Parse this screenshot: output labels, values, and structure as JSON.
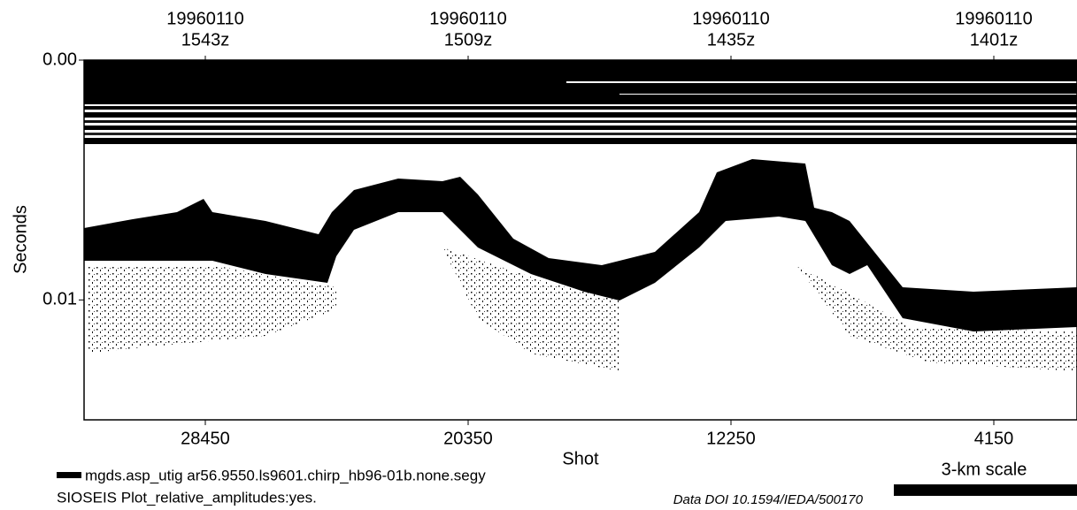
{
  "chart_data": {
    "type": "seismic",
    "xlabel": "Shot",
    "ylabel": "Seconds",
    "xlim": [
      32186,
      1586
    ],
    "xticks": [
      28450,
      20350,
      12250,
      4150
    ],
    "ylim": [
      0,
      0.015
    ],
    "yticks": [
      {
        "value": 0,
        "label": "0.00"
      },
      0.01
    ],
    "top_labels": [
      {
        "value": 28450,
        "date": "19960110",
        "time": "1543z"
      },
      {
        "value": 20350,
        "date": "19960110",
        "time": "1509z"
      },
      {
        "value": 12250,
        "date": "19960110",
        "time": "1435z"
      },
      {
        "value": 4150,
        "date": "19960110",
        "time": "1401z"
      }
    ],
    "file_label": "mgds.asp_utig ar56.9550.ls9601.chirp_hb96-01b.none.segy",
    "plot_note": "SIOSEIS Plot_relative_amplitudes:yes.",
    "doi": "Data DOI 10.1594/IEDA/500170",
    "scale_label": "3-km scale"
  }
}
